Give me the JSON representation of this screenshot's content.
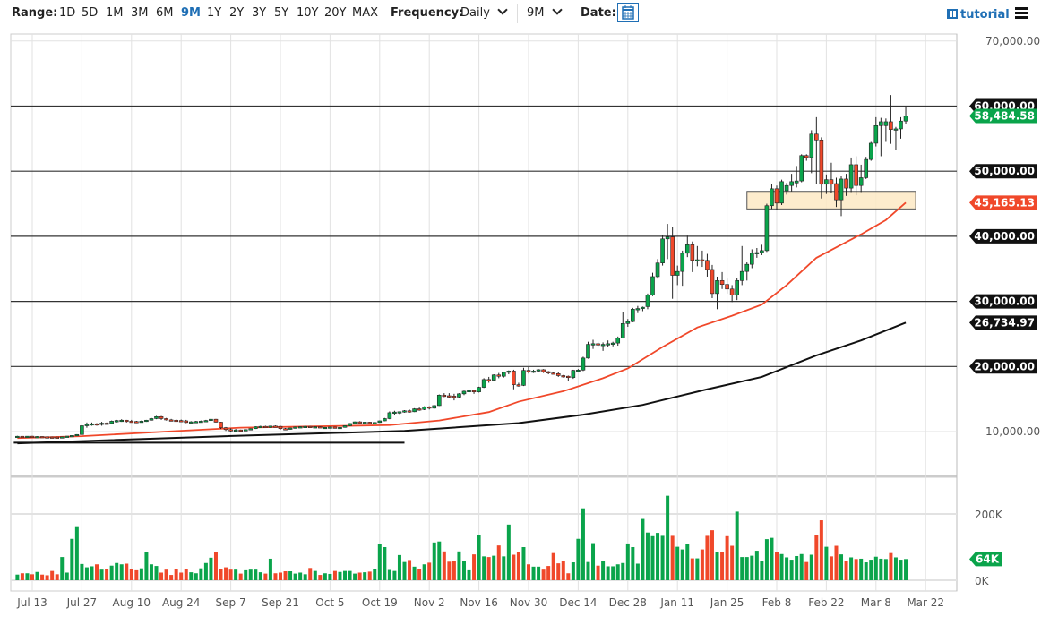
{
  "toolbar": {
    "range_label": "Range:",
    "ranges": [
      "1D",
      "5D",
      "1M",
      "3M",
      "6M",
      "9M",
      "1Y",
      "2Y",
      "3Y",
      "5Y",
      "10Y",
      "20Y",
      "MAX"
    ],
    "active_range": "9M",
    "frequency_label": "Frequency:",
    "frequency_value": "Daily",
    "period_value": "9M",
    "date_label": "Date:",
    "tutorial_label": "tutorial",
    "icons": [
      "calendar-icon",
      "film-icon",
      "hamburger-menu-icon",
      "chevron-down-icon"
    ]
  },
  "colors": {
    "up": "#0aa44b",
    "down": "#f0482a",
    "ma_fast": "#f0482a",
    "ma_slow": "#111111",
    "box_fill": "#fde9c4",
    "accent": "#1f6fb5"
  },
  "chart_data": {
    "type": "candlestick",
    "price_axis": {
      "ticks": [
        70000,
        60000,
        50000,
        40000,
        30000,
        20000,
        10000
      ],
      "tick_labels": [
        "70,000.00",
        "60,000.00",
        "50,000.00",
        "40,000.00",
        "30,000.00",
        "20,000.00",
        "10,000.00"
      ],
      "dark_lines": [
        60000,
        50000,
        40000,
        30000,
        20000
      ]
    },
    "volume_axis": {
      "ticks": [
        200,
        0
      ],
      "tick_labels": [
        "200K",
        "0K"
      ]
    },
    "x_tick_labels": [
      "Jul 13",
      "Jul 27",
      "Aug 10",
      "Aug 24",
      "Sep 7",
      "Sep 21",
      "Oct 5",
      "Oct 19",
      "Nov 2",
      "Nov 16",
      "Nov 30",
      "Dec 14",
      "Dec 28",
      "Jan 11",
      "Jan 25",
      "Feb 8",
      "Feb 22",
      "Mar 8",
      "Mar 22"
    ],
    "price_tags": [
      {
        "value": 60000,
        "label": "60,000.00",
        "kind": "level"
      },
      {
        "value": 58484.58,
        "label": "58,484.58",
        "kind": "last"
      },
      {
        "value": 50000,
        "label": "50,000.00",
        "kind": "level"
      },
      {
        "value": 45165.13,
        "label": "45,165.13",
        "kind": "ma_fast"
      },
      {
        "value": 40000,
        "label": "40,000.00",
        "kind": "level"
      },
      {
        "value": 30000,
        "label": "30,000.00",
        "kind": "level"
      },
      {
        "value": 26734.97,
        "label": "26,734.97",
        "kind": "ma_slow"
      },
      {
        "value": 20000,
        "label": "20,000.00",
        "kind": "level"
      }
    ],
    "volume_tag": {
      "value": 64,
      "label": "64K"
    },
    "candles_ohlc": [
      [
        9250,
        9350,
        9150,
        9280
      ],
      [
        9280,
        9320,
        9120,
        9230
      ],
      [
        9230,
        9300,
        9150,
        9290
      ],
      [
        9290,
        9340,
        9180,
        9240
      ],
      [
        9240,
        9300,
        9120,
        9250
      ],
      [
        9250,
        9280,
        9150,
        9200
      ],
      [
        9200,
        9260,
        9110,
        9170
      ],
      [
        9170,
        9240,
        9100,
        9160
      ],
      [
        9160,
        9210,
        9050,
        9150
      ],
      [
        9150,
        9250,
        9100,
        9200
      ],
      [
        9200,
        9320,
        9150,
        9300
      ],
      [
        9300,
        9420,
        9250,
        9400
      ],
      [
        9400,
        9600,
        9350,
        9550
      ],
      [
        9550,
        11000,
        9500,
        10900
      ],
      [
        10900,
        11400,
        10600,
        11100
      ],
      [
        11100,
        11400,
        10900,
        11200
      ],
      [
        11200,
        11300,
        10900,
        11150
      ],
      [
        11150,
        11500,
        10900,
        11300
      ],
      [
        11300,
        11400,
        11100,
        11250
      ],
      [
        11250,
        11700,
        11200,
        11600
      ],
      [
        11600,
        11800,
        11400,
        11700
      ],
      [
        11700,
        11900,
        11500,
        11750
      ],
      [
        11750,
        11800,
        11400,
        11600
      ],
      [
        11600,
        11800,
        11500,
        11550
      ],
      [
        11550,
        11650,
        11300,
        11450
      ],
      [
        11450,
        11700,
        11400,
        11600
      ],
      [
        11600,
        11800,
        11500,
        11750
      ],
      [
        11750,
        12100,
        11700,
        12000
      ],
      [
        12000,
        12400,
        11900,
        12300
      ],
      [
        12300,
        12400,
        11800,
        12000
      ],
      [
        12000,
        12100,
        11700,
        11800
      ],
      [
        11800,
        11950,
        11600,
        11750
      ],
      [
        11750,
        11900,
        11550,
        11700
      ],
      [
        11700,
        11850,
        11500,
        11650
      ],
      [
        11650,
        11800,
        11300,
        11400
      ],
      [
        11400,
        11600,
        11300,
        11500
      ],
      [
        11500,
        11650,
        11400,
        11550
      ],
      [
        11550,
        11700,
        11450,
        11600
      ],
      [
        11600,
        11800,
        11500,
        11700
      ],
      [
        11700,
        12000,
        11600,
        11900
      ],
      [
        11900,
        11950,
        11400,
        11450
      ],
      [
        11450,
        11500,
        10400,
        10600
      ],
      [
        10600,
        10700,
        10100,
        10300
      ],
      [
        10300,
        10500,
        9900,
        10200
      ],
      [
        10200,
        10400,
        10050,
        10250
      ],
      [
        10250,
        10300,
        10050,
        10150
      ],
      [
        10150,
        10350,
        10100,
        10300
      ],
      [
        10300,
        10500,
        10250,
        10450
      ],
      [
        10450,
        10800,
        10400,
        10750
      ],
      [
        10750,
        10900,
        10650,
        10800
      ],
      [
        10800,
        10900,
        10650,
        10750
      ],
      [
        10750,
        10900,
        10600,
        10850
      ],
      [
        10850,
        10950,
        10700,
        10800
      ],
      [
        10800,
        10900,
        10300,
        10450
      ],
      [
        10450,
        10550,
        10250,
        10350
      ],
      [
        10350,
        10600,
        10300,
        10550
      ],
      [
        10550,
        10750,
        10500,
        10700
      ],
      [
        10700,
        10800,
        10600,
        10750
      ],
      [
        10750,
        10900,
        10650,
        10800
      ],
      [
        10800,
        10850,
        10650,
        10700
      ],
      [
        10700,
        10800,
        10600,
        10750
      ],
      [
        10750,
        10800,
        10550,
        10600
      ],
      [
        10600,
        10700,
        10500,
        10650
      ],
      [
        10650,
        10750,
        10550,
        10700
      ],
      [
        10700,
        10750,
        10550,
        10600
      ],
      [
        10600,
        10700,
        10500,
        10650
      ],
      [
        10650,
        10950,
        10600,
        10900
      ],
      [
        10900,
        11300,
        10850,
        11250
      ],
      [
        11250,
        11550,
        11200,
        11500
      ],
      [
        11500,
        11600,
        11300,
        11400
      ],
      [
        11400,
        11500,
        11300,
        11450
      ],
      [
        11450,
        11500,
        11250,
        11350
      ],
      [
        11350,
        11450,
        11200,
        11400
      ],
      [
        11400,
        11700,
        11350,
        11650
      ],
      [
        11650,
        12100,
        11600,
        12000
      ],
      [
        12000,
        13100,
        11900,
        12900
      ],
      [
        12900,
        13200,
        12600,
        13000
      ],
      [
        13000,
        13100,
        12700,
        13050
      ],
      [
        13050,
        13300,
        12900,
        13200
      ],
      [
        13200,
        13400,
        12900,
        13050
      ],
      [
        13050,
        13600,
        13000,
        13500
      ],
      [
        13500,
        13700,
        13200,
        13400
      ],
      [
        13400,
        13900,
        13300,
        13800
      ],
      [
        13800,
        13900,
        13400,
        13600
      ],
      [
        13600,
        14100,
        13500,
        14000
      ],
      [
        14000,
        15700,
        13950,
        15600
      ],
      [
        15600,
        15900,
        15300,
        15500
      ],
      [
        15500,
        15900,
        15200,
        15450
      ],
      [
        15450,
        15800,
        14800,
        15300
      ],
      [
        15300,
        15900,
        15200,
        15800
      ],
      [
        15800,
        16300,
        15600,
        16200
      ],
      [
        16200,
        16500,
        15900,
        16300
      ],
      [
        16300,
        16400,
        15800,
        16100
      ],
      [
        16100,
        16900,
        16000,
        16800
      ],
      [
        16800,
        18200,
        16700,
        18000
      ],
      [
        18000,
        18400,
        17500,
        17900
      ],
      [
        17900,
        18800,
        17800,
        18700
      ],
      [
        18700,
        19000,
        18200,
        18500
      ],
      [
        18500,
        19200,
        18300,
        19100
      ],
      [
        19100,
        19400,
        18800,
        19300
      ],
      [
        19300,
        19500,
        16500,
        17200
      ],
      [
        17200,
        17500,
        16900,
        17100
      ],
      [
        17100,
        19800,
        17000,
        19400
      ],
      [
        19400,
        19900,
        18900,
        19200
      ],
      [
        19200,
        19500,
        19000,
        19300
      ],
      [
        19300,
        19600,
        19100,
        19500
      ],
      [
        19500,
        19600,
        19000,
        19200
      ],
      [
        19200,
        19300,
        18800,
        19000
      ],
      [
        19000,
        19200,
        18800,
        18900
      ],
      [
        18900,
        19100,
        18400,
        18600
      ],
      [
        18600,
        18700,
        18300,
        18500
      ],
      [
        18500,
        18600,
        17700,
        18300
      ],
      [
        18300,
        19500,
        18100,
        19400
      ],
      [
        19400,
        19600,
        19100,
        19450
      ],
      [
        19450,
        21500,
        19300,
        21300
      ],
      [
        21300,
        23800,
        21200,
        23400
      ],
      [
        23400,
        24100,
        22700,
        23500
      ],
      [
        23500,
        23800,
        22900,
        23300
      ],
      [
        23300,
        23700,
        22400,
        23400
      ],
      [
        23400,
        24000,
        23000,
        23500
      ],
      [
        23500,
        23800,
        23100,
        23600
      ],
      [
        23600,
        24600,
        23200,
        24400
      ],
      [
        24400,
        28400,
        24300,
        26600
      ],
      [
        26600,
        27300,
        26100,
        26900
      ],
      [
        26900,
        29000,
        26800,
        28800
      ],
      [
        28800,
        29300,
        28200,
        28900
      ],
      [
        28900,
        29200,
        28500,
        29100
      ],
      [
        29200,
        31200,
        28800,
        31000
      ],
      [
        31000,
        34400,
        30800,
        33800
      ],
      [
        33800,
        36500,
        33500,
        35900
      ],
      [
        35900,
        40200,
        35500,
        39600
      ],
      [
        39600,
        41900,
        36500,
        39900
      ],
      [
        39900,
        41500,
        30400,
        34000
      ],
      [
        34000,
        35500,
        32500,
        34600
      ],
      [
        34600,
        37800,
        32400,
        37400
      ],
      [
        37400,
        40100,
        36800,
        38700
      ],
      [
        38700,
        39200,
        34500,
        36300
      ],
      [
        36300,
        38500,
        35400,
        36400
      ],
      [
        36400,
        37800,
        35300,
        36300
      ],
      [
        36300,
        37300,
        33800,
        34900
      ],
      [
        34900,
        35600,
        30500,
        31200
      ],
      [
        31200,
        33800,
        28800,
        33200
      ],
      [
        33200,
        34500,
        31900,
        32600
      ],
      [
        32600,
        33500,
        31200,
        31900
      ],
      [
        31900,
        32500,
        29900,
        31000
      ],
      [
        31000,
        33600,
        30200,
        33200
      ],
      [
        33200,
        38500,
        32500,
        34600
      ],
      [
        34600,
        36000,
        33200,
        35700
      ],
      [
        35700,
        38000,
        35100,
        37400
      ],
      [
        37400,
        38200,
        36700,
        37500
      ],
      [
        37500,
        38700,
        37100,
        37800
      ],
      [
        37800,
        45000,
        37600,
        44700
      ],
      [
        44700,
        48100,
        44200,
        47300
      ],
      [
        47300,
        47800,
        44000,
        45100
      ],
      [
        45100,
        48700,
        44800,
        48400
      ],
      [
        47000,
        48200,
        46400,
        47800
      ],
      [
        47800,
        49600,
        46900,
        48400
      ],
      [
        48200,
        50800,
        47500,
        48500
      ],
      [
        48500,
        52600,
        48300,
        52400
      ],
      [
        52400,
        52600,
        51600,
        52100
      ],
      [
        52100,
        56300,
        49700,
        55700
      ],
      [
        55700,
        58300,
        48100,
        54800
      ],
      [
        54800,
        55200,
        45800,
        48000
      ],
      [
        48000,
        49500,
        46500,
        48700
      ],
      [
        48700,
        51300,
        46600,
        48000
      ],
      [
        48100,
        49000,
        44500,
        45600
      ],
      [
        45600,
        49200,
        43100,
        48800
      ],
      [
        48800,
        49600,
        46200,
        47400
      ],
      [
        47400,
        52100,
        46800,
        51000
      ],
      [
        51000,
        52300,
        46300,
        47800
      ],
      [
        47800,
        51000,
        46800,
        49000
      ],
      [
        49000,
        52200,
        48800,
        51800
      ],
      [
        51800,
        54500,
        51600,
        54300
      ],
      [
        54300,
        58300,
        53800,
        57000
      ],
      [
        57000,
        58200,
        52300,
        57600
      ],
      [
        57000,
        58100,
        54500,
        57600
      ],
      [
        57600,
        61700,
        54200,
        56400
      ],
      [
        56400,
        56800,
        53300,
        56500
      ],
      [
        56500,
        58300,
        55000,
        57700
      ],
      [
        57700,
        60000,
        57300,
        58500
      ]
    ],
    "volume_k": [
      17,
      21,
      21,
      18,
      25,
      17,
      15,
      28,
      18,
      70,
      23,
      125,
      163,
      49,
      39,
      42,
      48,
      32,
      33,
      44,
      52,
      48,
      50,
      34,
      30,
      36,
      86,
      48,
      43,
      23,
      32,
      16,
      35,
      23,
      34,
      24,
      21,
      36,
      52,
      68,
      86,
      33,
      39,
      32,
      32,
      20,
      30,
      32,
      32,
      24,
      20,
      65,
      21,
      23,
      27,
      27,
      20,
      23,
      18,
      37,
      28,
      16,
      21,
      19,
      28,
      25,
      28,
      28,
      20,
      23,
      24,
      26,
      33,
      110,
      100,
      31,
      28,
      76,
      55,
      61,
      41,
      35,
      48,
      53,
      114,
      117,
      87,
      56,
      58,
      87,
      57,
      30,
      78,
      137,
      72,
      70,
      74,
      105,
      72,
      168,
      77,
      86,
      100,
      48,
      41,
      41,
      32,
      43,
      82,
      51,
      59,
      21,
      54,
      125,
      217,
      55,
      112,
      44,
      57,
      42,
      42,
      48,
      52,
      111,
      100,
      50,
      185,
      144,
      133,
      143,
      134,
      255,
      134,
      101,
      93,
      110,
      66,
      66,
      93,
      134,
      151,
      84,
      86,
      133,
      104,
      207,
      70,
      70,
      74,
      89,
      59,
      124,
      128,
      85,
      79,
      69,
      62,
      73,
      79,
      55,
      77,
      136,
      181,
      101,
      72,
      104,
      78,
      59,
      69,
      64,
      65,
      54,
      62,
      71,
      65,
      64,
      82,
      69,
      62,
      64
    ],
    "ma_fast_points": [
      [
        0,
        9000
      ],
      [
        13,
        9300
      ],
      [
        30,
        10000
      ],
      [
        45,
        10600
      ],
      [
        60,
        10800
      ],
      [
        75,
        11000
      ],
      [
        85,
        11700
      ],
      [
        95,
        13000
      ],
      [
        101,
        14600
      ],
      [
        110,
        16200
      ],
      [
        118,
        18200
      ],
      [
        123,
        19700
      ],
      [
        130,
        23000
      ],
      [
        137,
        26000
      ],
      [
        144,
        27800
      ],
      [
        150,
        29500
      ],
      [
        155,
        32500
      ],
      [
        161,
        36700
      ],
      [
        166,
        38700
      ],
      [
        170,
        40300
      ],
      [
        175,
        42500
      ],
      [
        179,
        45165.13
      ]
    ],
    "ma_slow_points": [
      [
        0,
        8200
      ],
      [
        42,
        9300
      ],
      [
        78,
        10100
      ],
      [
        101,
        11300
      ],
      [
        114,
        12600
      ],
      [
        126,
        14100
      ],
      [
        139,
        16500
      ],
      [
        150,
        18400
      ],
      [
        161,
        21700
      ],
      [
        170,
        24000
      ],
      [
        179,
        26734.97
      ]
    ],
    "support_line": {
      "from_bar": 0,
      "to_bar": 78,
      "value": 8300
    },
    "range_box": {
      "from_bar": 147,
      "to_bar": 181,
      "low": 44200,
      "high": 46900
    }
  }
}
